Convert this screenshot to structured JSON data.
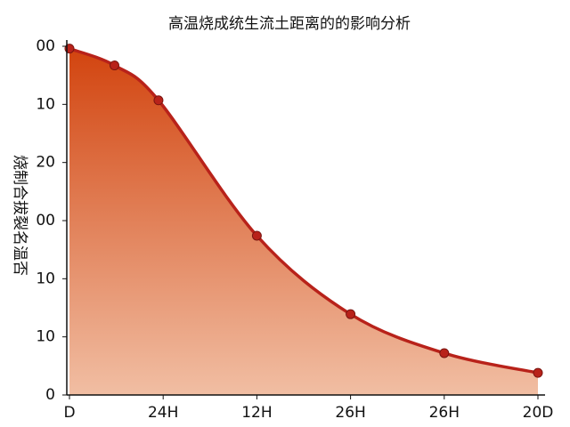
{
  "chart_data": {
    "type": "area",
    "title": "高温烧成统生流土距离的的影响分析",
    "y_label": "烧制合拔裂名温否",
    "xlim": [
      0,
      5
    ],
    "xticks": [
      {
        "value": 0,
        "label": "D"
      },
      {
        "value": 1,
        "label": "24H"
      },
      {
        "value": 2,
        "label": "12H"
      },
      {
        "value": 3,
        "label": "26H"
      },
      {
        "value": 4,
        "label": "26H"
      },
      {
        "value": 5,
        "label": "20D"
      }
    ],
    "ylim": [
      0,
      6
    ],
    "yticks": [
      0,
      {
        "value": 1,
        "label": "10"
      },
      {
        "value": 2,
        "label": "10"
      },
      {
        "value": 3,
        "label": "00"
      },
      {
        "value": 4,
        "label": "20"
      },
      {
        "value": 5,
        "label": "10"
      },
      {
        "value": 6,
        "label": "00"
      }
    ],
    "series": [
      {
        "color": "#b8221a",
        "x": [
          0,
          0.48,
          0.95,
          2,
          3,
          4,
          5
        ],
        "values": [
          5.96,
          5.67,
          5.07,
          2.74,
          1.39,
          0.72,
          0.38
        ]
      }
    ],
    "grid": false
  }
}
